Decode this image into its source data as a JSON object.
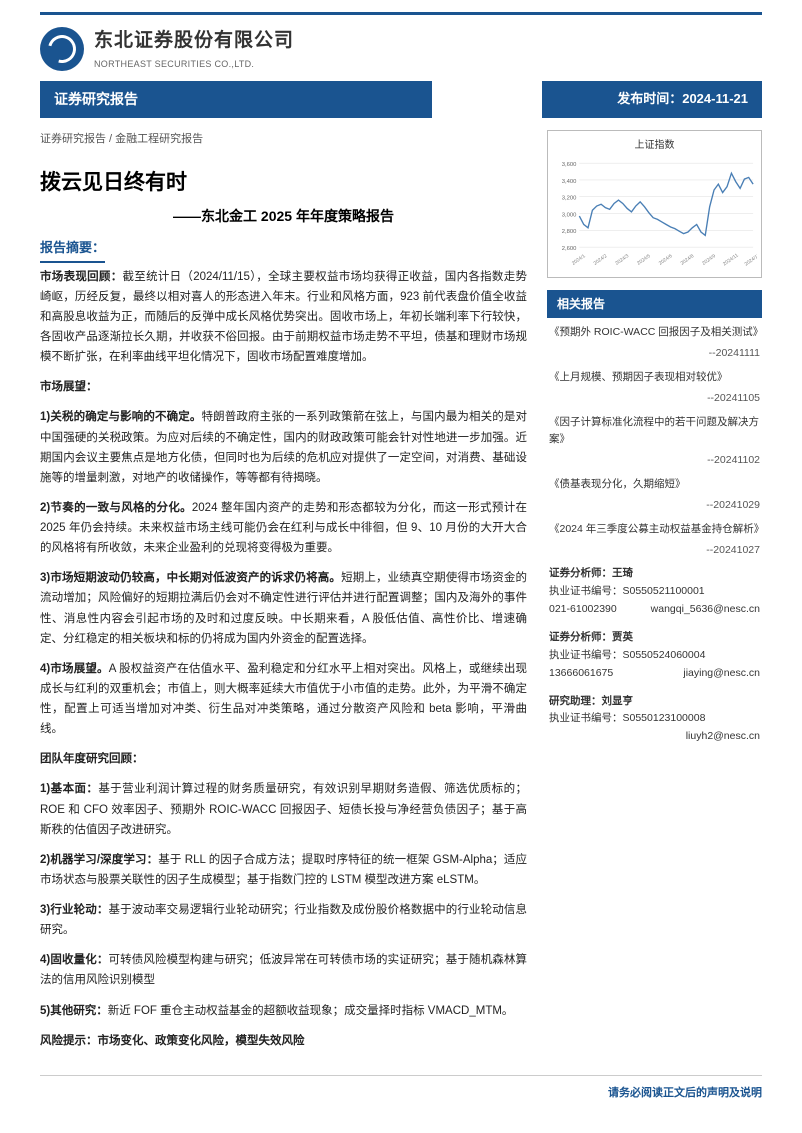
{
  "company": {
    "name_cn": "东北证券股份有限公司",
    "name_en": "NORTHEAST SECURITIES CO.,LTD."
  },
  "header_bar": {
    "left": "证券研究报告",
    "right": "发布时间：2024-11-21"
  },
  "breadcrumb": "证券研究报告 / 金融工程研究报告",
  "title": "拨云见日终有时",
  "subtitle": "——东北金工 2025 年年度策略报告",
  "abstract_label": "报告摘要：",
  "p_review": "市场表现回顾：截至统计日（2024/11/15），全球主要权益市场均获得正收益，国内各指数走势崎岖，历经反复，最终以相对喜人的形态进入年末。行业和风格方面，923 前代表盘价值全收益和高股息收益为正，而随后的反弹中成长风格优势突出。固收市场上，年初长端利率下行较快，各固收产品逐渐拉长久期，并收获不俗回报。由于前期权益市场走势不平坦，债基和理财市场规模不断扩张，在利率曲线平坦化情况下，固收市场配置难度增加。",
  "outlook_label": "市场展望：",
  "p1": "1)关税的确定与影响的不确定。特朗普政府主张的一系列政策箭在弦上，与国内最为相关的是对中国强硬的关税政策。为应对后续的不确定性，国内的财政政策可能会针对性地进一步加强。近期国内会议主要焦点是地方化债，但同时也为后续的危机应对提供了一定空间，对消费、基础设施等的增量刺激，对地产的收储操作，等等都有待揭晓。",
  "p2": "2)节奏的一致与风格的分化。2024 整年国内资产的走势和形态都较为分化，而这一形式预计在 2025 年仍会持续。未来权益市场主线可能仍会在红利与成长中徘徊，但 9、10 月份的大开大合的风格将有所收敛，未来企业盈利的兑现将变得极为重要。",
  "p3": "3)市场短期波动仍较高，中长期对低波资产的诉求仍将高。短期上，业绩真空期使得市场资金的流动增加；风险偏好的短期拉满后仍会对不确定性进行评估并进行配置调整；国内及海外的事件性、消息性内容会引起市场的及时和过度反映。中长期来看，A 股低估值、高性价比、增速确定、分红稳定的相关板块和标的仍将成为国内外资金的配置选择。",
  "p4": "4)市场展望。A 股权益资产在估值水平、盈利稳定和分红水平上相对突出。风格上，或继续出现成长与红利的双重机会；市值上，则大概率延续大市值优于小市值的走势。此外，为平滑不确定性，配置上可适当增加对冲类、衍生品对冲类策略，通过分散资产风险和 beta 影响，平滑曲线。",
  "team_label": "团队年度研究回顾：",
  "t1": "1)基本面：基于营业利润计算过程的财务质量研究，有效识别早期财务造假、筛选优质标的；ROE 和 CFO 效率因子、预期外 ROIC-WACC 回报因子、短债长投与净经营负债因子；基于高斯秩的估值因子改进研究。",
  "t2": "2)机器学习/深度学习：基于 RLL 的因子合成方法；提取时序特征的统一框架 GSM-Alpha；适应市场状态与股票关联性的因子生成模型；基于指数门控的 LSTM 模型改进方案 eLSTM。",
  "t3": "3)行业轮动：基于波动率交易逻辑行业轮动研究；行业指数及成份股价格数据中的行业轮动信息研究。",
  "t4": "4)固收量化：可转债风险模型构建与研究；低波异常在可转债市场的实证研究；基于随机森林算法的信用风险识别模型",
  "t5": "5)其他研究：新近 FOF 重仓主动权益基金的超额收益现象；成交量择时指标 VMACD_MTM。",
  "risk": "风险提示：市场变化、政策变化风险，模型失效风险",
  "chart": {
    "title": "上证指数",
    "y_min": 2600,
    "y_max": 3600,
    "y_ticks": [
      2600,
      2800,
      3000,
      3200,
      3400,
      3600
    ],
    "series_color": "#4a7fb5",
    "grid_color": "#dddddd",
    "bg": "#ffffff",
    "points": [
      2970,
      2870,
      2830,
      3040,
      3090,
      3110,
      3070,
      3050,
      3120,
      3160,
      3120,
      3060,
      3020,
      3090,
      3140,
      3080,
      3010,
      2950,
      2930,
      2900,
      2870,
      2840,
      2820,
      2790,
      2760,
      2780,
      2830,
      2870,
      2780,
      2740,
      3080,
      3280,
      3350,
      3250,
      3320,
      3480,
      3380,
      3300,
      3410,
      3430,
      3350
    ]
  },
  "related": {
    "heading": "相关报告",
    "items": [
      {
        "title": "《预期外 ROIC-WACC 回报因子及相关测试》",
        "date": "--20241111"
      },
      {
        "title": "《上月规模、预期因子表现相对较优》",
        "date": "--20241105"
      },
      {
        "title": "《因子计算标准化流程中的若干问题及解决方案》",
        "date": "--20241102"
      },
      {
        "title": "《债基表现分化，久期缩短》",
        "date": "--20241029"
      },
      {
        "title": "《2024 年三季度公募主动权益基金持仓解析》",
        "date": "--20241027"
      }
    ]
  },
  "analysts": [
    {
      "role": "证券分析师：",
      "name": "王琦",
      "cert_label": "执业证书编号：",
      "cert": "S0550521100001",
      "c1": "021-61002390",
      "c2": "wangqi_5636@nesc.cn"
    },
    {
      "role": "证券分析师：",
      "name": "贾英",
      "cert_label": "执业证书编号：",
      "cert": "S0550524060004",
      "c1": "13666061675",
      "c2": "jiaying@nesc.cn"
    },
    {
      "role": "研究助理：",
      "name": "刘显亨",
      "cert_label": "执业证书编号：",
      "cert": "S0550123100008",
      "c1": "",
      "c2": "liuyh2@nesc.cn"
    }
  ],
  "footer": "请务必阅读正文后的声明及说明"
}
